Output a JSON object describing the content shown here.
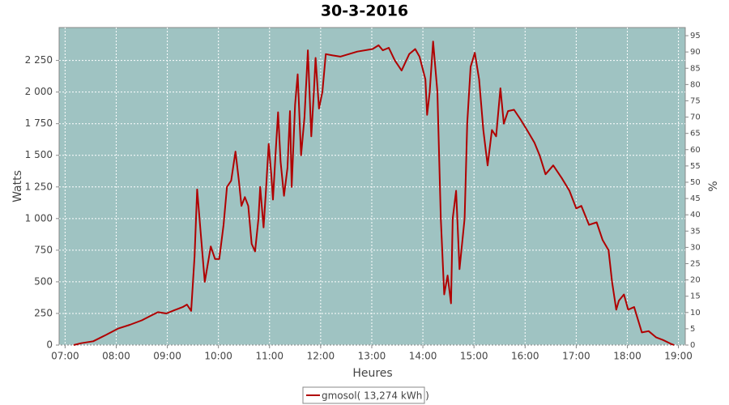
{
  "chart_data": {
    "type": "line",
    "title": "30-3-2016",
    "x_label": "Heures",
    "y_label": "Watts",
    "y2_label": "%",
    "x": [
      430,
      439,
      453,
      468,
      482,
      496,
      510,
      520,
      529,
      539,
      548,
      558,
      563,
      568,
      572,
      575,
      579,
      584,
      587,
      591,
      596,
      601,
      606,
      610,
      615,
      620,
      624,
      627,
      631,
      635,
      639,
      643,
      647,
      649,
      653,
      656,
      659,
      662,
      664,
      667,
      670,
      673,
      677,
      681,
      684,
      686,
      690,
      693,
      697,
      701,
      705,
      709,
      712,
      714,
      718,
      722,
      726,
      734,
      743,
      753,
      763,
      781,
      788,
      793,
      800,
      807,
      815,
      824,
      831,
      836,
      843,
      845,
      848,
      852,
      857,
      861,
      865,
      869,
      873,
      875,
      879,
      883,
      889,
      892,
      896,
      901,
      906,
      911,
      916,
      921,
      926,
      931,
      935,
      940,
      947,
      955,
      964,
      971,
      977,
      984,
      993,
      1003,
      1012,
      1020,
      1026,
      1035,
      1044,
      1051,
      1058,
      1062,
      1067,
      1070,
      1076,
      1081,
      1088,
      1097,
      1105,
      1114,
      1122,
      1131,
      1135
    ],
    "series": [
      {
        "name": "gmosol( 13,274 kWh )",
        "color": "#b00000",
        "values": [
          0,
          15,
          30,
          80,
          130,
          160,
          195,
          230,
          260,
          250,
          275,
          300,
          320,
          270,
          700,
          1230,
          900,
          500,
          620,
          780,
          680,
          680,
          950,
          1250,
          1300,
          1530,
          1300,
          1100,
          1170,
          1100,
          800,
          740,
          1000,
          1250,
          930,
          1250,
          1590,
          1350,
          1150,
          1500,
          1840,
          1450,
          1180,
          1400,
          1850,
          1250,
          1900,
          2140,
          1500,
          1800,
          2330,
          1650,
          2000,
          2270,
          1870,
          2000,
          2300,
          2290,
          2280,
          2300,
          2320,
          2340,
          2370,
          2330,
          2350,
          2250,
          2170,
          2300,
          2340,
          2280,
          2100,
          1820,
          2000,
          2400,
          2000,
          1000,
          400,
          550,
          330,
          1000,
          1220,
          600,
          1000,
          1750,
          2200,
          2310,
          2100,
          1700,
          1420,
          1700,
          1650,
          2030,
          1750,
          1850,
          1860,
          1780,
          1680,
          1600,
          1500,
          1350,
          1420,
          1320,
          1220,
          1080,
          1100,
          950,
          970,
          830,
          750,
          500,
          280,
          350,
          400,
          280,
          300,
          100,
          110,
          60,
          40,
          10,
          0
        ]
      }
    ],
    "xlim": [
      413,
      1148
    ],
    "xticks": [
      {
        "value": 420,
        "label": "07:00"
      },
      {
        "value": 480,
        "label": "08:00"
      },
      {
        "value": 540,
        "label": "09:00"
      },
      {
        "value": 600,
        "label": "10:00"
      },
      {
        "value": 660,
        "label": "11:00"
      },
      {
        "value": 720,
        "label": "12:00"
      },
      {
        "value": 780,
        "label": "13:00"
      },
      {
        "value": 840,
        "label": "14:00"
      },
      {
        "value": 900,
        "label": "15:00"
      },
      {
        "value": 960,
        "label": "16:00"
      },
      {
        "value": 1020,
        "label": "17:00"
      },
      {
        "value": 1080,
        "label": "18:00"
      },
      {
        "value": 1140,
        "label": "19:00"
      }
    ],
    "ylim": [
      0,
      2510
    ],
    "yticks": [
      0,
      250,
      500,
      750,
      {
        "value": 1000,
        "label": "1 000"
      },
      {
        "value": 1250,
        "label": "1 250"
      },
      {
        "value": 1500,
        "label": "1 500"
      },
      {
        "value": 1750,
        "label": "1 750"
      },
      {
        "value": 2000,
        "label": "2 000"
      },
      {
        "value": 2250,
        "label": "2 250"
      }
    ],
    "y2lim": [
      0,
      97.5
    ],
    "y2ticks": [
      0,
      5,
      10,
      15,
      20,
      25,
      30,
      35,
      40,
      45,
      50,
      55,
      60,
      65,
      70,
      75,
      80,
      85,
      90,
      95
    ],
    "grid": true,
    "background": "#9fc3c2",
    "legend": "bottom"
  }
}
